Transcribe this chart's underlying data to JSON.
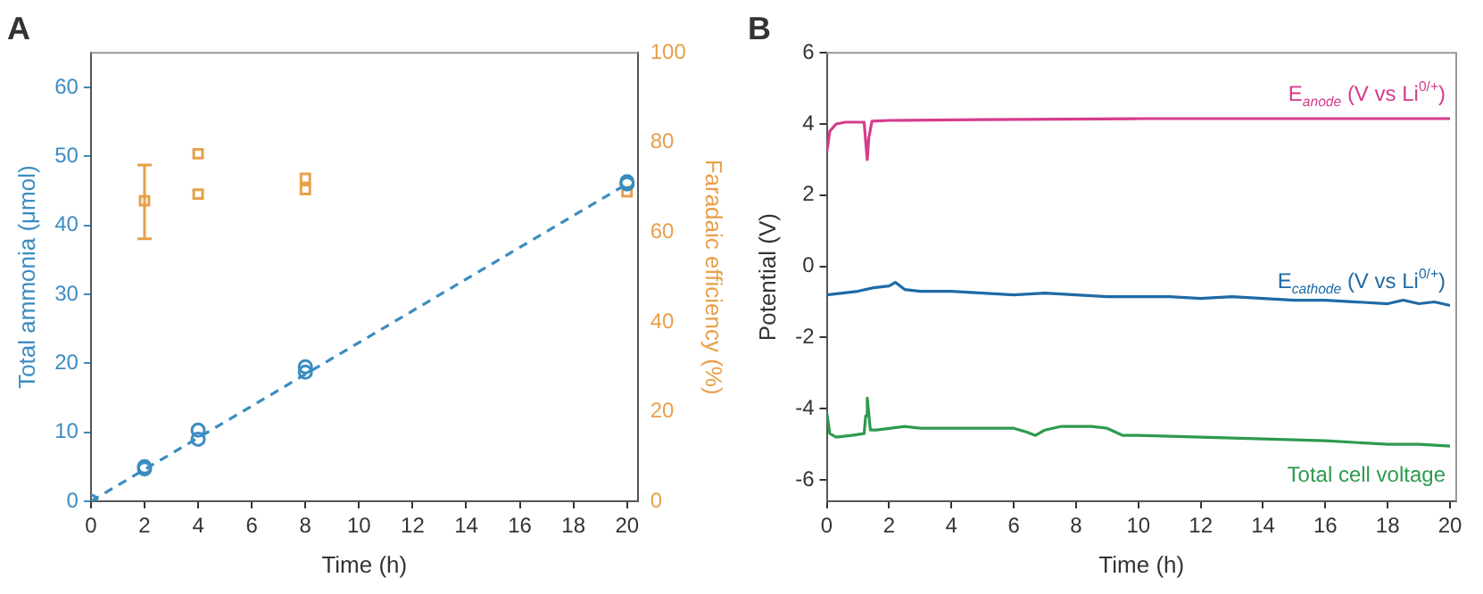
{
  "chart_data": [
    {
      "type": "scatter",
      "title": "A",
      "xlabel": "Time (h)",
      "ylabel": "Total ammonia (μmol)",
      "y2label": "Faradaic efficiency (%)",
      "xlim": [
        0,
        20.4
      ],
      "xticks": [
        0,
        2,
        4,
        6,
        8,
        10,
        12,
        14,
        16,
        18,
        20
      ],
      "ylim": [
        0,
        65
      ],
      "yticks": [
        0,
        10,
        20,
        30,
        40,
        50,
        60
      ],
      "y2lim": [
        0,
        100
      ],
      "y2ticks": [
        0,
        20,
        40,
        60,
        80,
        100
      ],
      "grid": false,
      "legend": false,
      "series": [
        {
          "marker": "circle",
          "color": "#3a8cc0",
          "x": [
            0,
            2,
            2,
            4,
            4,
            8,
            8,
            20,
            20
          ],
          "values": [
            0,
            4.7,
            5,
            9,
            10.3,
            18.7,
            19.5,
            46,
            46.3
          ]
        },
        {
          "marker": "square",
          "axis": "y2",
          "color": "#e8a04a",
          "x": [
            2,
            4,
            4,
            8,
            8,
            20
          ],
          "values": [
            67,
            77.5,
            68.5,
            72,
            69.5,
            69
          ],
          "errors": [
            [
              58.5,
              75
            ],
            null,
            null,
            null,
            null,
            null
          ]
        },
        {
          "type": "line",
          "marker": "none",
          "line_style": "dashed",
          "color": "#3a8cc0",
          "x": [
            0,
            20
          ],
          "values": [
            0,
            46
          ]
        }
      ]
    },
    {
      "type": "line",
      "title": "B",
      "xlabel": "Time (h)",
      "ylabel": "Potential (V)",
      "xlim": [
        0,
        20.2
      ],
      "xticks": [
        0,
        2,
        4,
        6,
        8,
        10,
        12,
        14,
        16,
        18,
        20
      ],
      "ylim": [
        -6.6,
        6
      ],
      "yticks": [
        -6,
        -4,
        -2,
        0,
        2,
        4,
        6
      ],
      "grid": false,
      "legend": false,
      "marker": "none",
      "series": [
        {
          "name": "E$_{anode}$ (V vs Li$^{0/+}$)",
          "color": "#d63c8c",
          "x": [
            0,
            0.1,
            0.3,
            0.6,
            1.2,
            1.25,
            1.3,
            1.35,
            1.45,
            2,
            5,
            10,
            20
          ],
          "values": [
            3.2,
            3.8,
            4.0,
            4.05,
            4.05,
            3.5,
            3.0,
            3.6,
            4.08,
            4.1,
            4.12,
            4.15,
            4.15
          ]
        },
        {
          "name": "E$_{cathode}$ (V vs Li$^{0/+}$)",
          "color": "#1f6aa5",
          "x": [
            0,
            0.5,
            1,
            1.5,
            2,
            2.2,
            2.5,
            3,
            4,
            5,
            6,
            7,
            8,
            9,
            10,
            11,
            12,
            13,
            14,
            15,
            16,
            17,
            18,
            18.5,
            19,
            19.5,
            20
          ],
          "values": [
            -0.8,
            -0.75,
            -0.7,
            -0.6,
            -0.55,
            -0.45,
            -0.65,
            -0.7,
            -0.7,
            -0.75,
            -0.8,
            -0.75,
            -0.8,
            -0.85,
            -0.85,
            -0.85,
            -0.9,
            -0.85,
            -0.9,
            -0.95,
            -0.95,
            -1.0,
            -1.05,
            -0.95,
            -1.05,
            -1.0,
            -1.1
          ]
        },
        {
          "name": "Total cell voltage",
          "color": "#2e9a4e",
          "x": [
            0,
            0.1,
            0.3,
            0.8,
            1.2,
            1.25,
            1.3,
            1.4,
            1.6,
            2.5,
            3,
            4,
            5,
            6,
            6.4,
            6.7,
            7,
            7.5,
            8.5,
            9,
            9.5,
            10,
            12,
            14,
            16,
            18,
            19,
            20
          ],
          "values": [
            -4.1,
            -4.7,
            -4.8,
            -4.75,
            -4.7,
            -4.2,
            -3.7,
            -4.6,
            -4.6,
            -4.5,
            -4.55,
            -4.55,
            -4.55,
            -4.55,
            -4.65,
            -4.75,
            -4.6,
            -4.5,
            -4.5,
            -4.55,
            -4.75,
            -4.75,
            -4.8,
            -4.85,
            -4.9,
            -5.0,
            -5.0,
            -5.05
          ]
        }
      ]
    }
  ]
}
